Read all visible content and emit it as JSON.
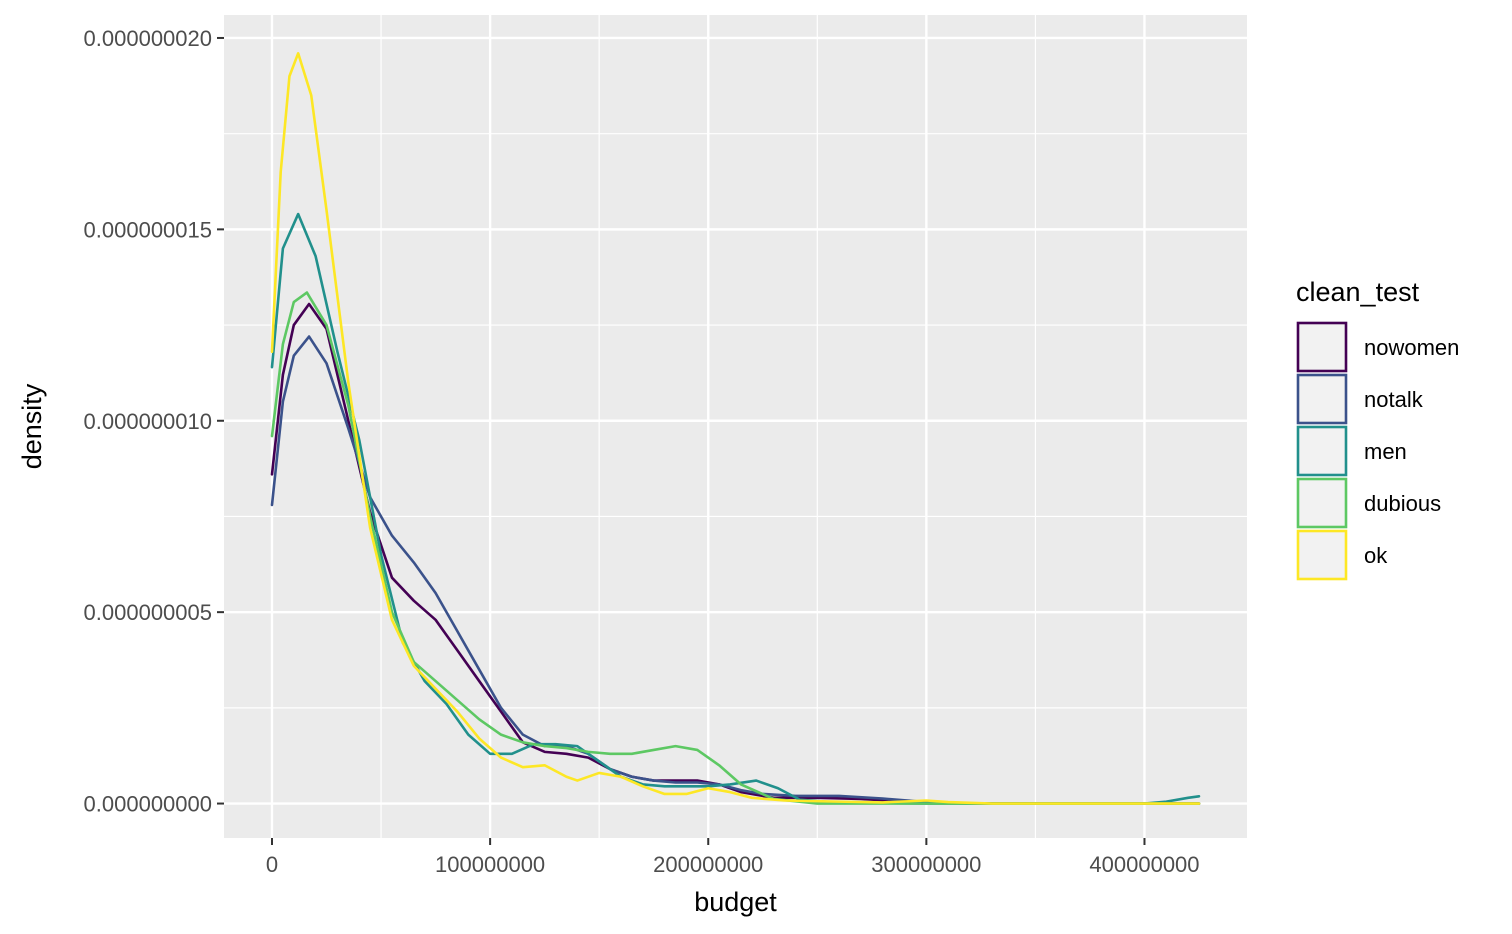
{
  "chart_data": {
    "type": "line",
    "subtype": "density",
    "title": "",
    "xlabel": "budget",
    "ylabel": "density",
    "xlim": [
      -22000000,
      447000000
    ],
    "ylim": [
      -9e-10,
      2.06e-08
    ],
    "x_ticks": [
      0,
      100000000,
      200000000,
      300000000,
      400000000
    ],
    "x_tick_labels": [
      "0",
      "100000000",
      "200000000",
      "300000000",
      "400000000"
    ],
    "y_ticks": [
      0,
      5e-09,
      1e-08,
      1.5e-08,
      2e-08
    ],
    "y_tick_labels": [
      "0.000000000",
      "0.000000005",
      "0.000000010",
      "0.000000015",
      "0.000000020"
    ],
    "grid": true,
    "legend": {
      "title": "clean_test",
      "position": "right"
    },
    "colors": {
      "panel": "#ebebeb",
      "grid": "#ffffff",
      "legend_key": "#f2f2f2",
      "tick": "#333333"
    },
    "series": [
      {
        "name": "nowomen",
        "color": "#440154",
        "points": [
          [
            0,
            8.6e-09
          ],
          [
            5000000.0,
            1.12e-08
          ],
          [
            10000000.0,
            1.25e-08
          ],
          [
            17000000.0,
            1.305e-08
          ],
          [
            25000000.0,
            1.24e-08
          ],
          [
            35000000.0,
            1e-08
          ],
          [
            45000000.0,
            7.6e-09
          ],
          [
            55000000.0,
            5.9e-09
          ],
          [
            65000000.0,
            5.3e-09
          ],
          [
            75000000.0,
            4.8e-09
          ],
          [
            85000000.0,
            4e-09
          ],
          [
            95000000.0,
            3.2e-09
          ],
          [
            105000000.0,
            2.4e-09
          ],
          [
            115000000.0,
            1.6e-09
          ],
          [
            125000000.0,
            1.35e-09
          ],
          [
            135000000.0,
            1.3e-09
          ],
          [
            145000000.0,
            1.2e-09
          ],
          [
            155000000.0,
            9e-10
          ],
          [
            165000000.0,
            7e-10
          ],
          [
            175000000.0,
            6e-10
          ],
          [
            185000000.0,
            6e-10
          ],
          [
            195000000.0,
            6e-10
          ],
          [
            205000000.0,
            5e-10
          ],
          [
            215000000.0,
            3e-10
          ],
          [
            230000000.0,
            1.5e-10
          ],
          [
            250000000.0,
            1.5e-10
          ],
          [
            270000000.0,
            1.2e-10
          ],
          [
            290000000.0,
            5e-11
          ],
          [
            310000000.0,
            1e-11
          ],
          [
            350000000.0,
            0
          ],
          [
            425000000.0,
            0
          ]
        ]
      },
      {
        "name": "notalk",
        "color": "#3b528b",
        "points": [
          [
            0,
            7.8e-09
          ],
          [
            5000000.0,
            1.05e-08
          ],
          [
            10000000.0,
            1.17e-08
          ],
          [
            17000000.0,
            1.22e-08
          ],
          [
            25000000.0,
            1.15e-08
          ],
          [
            35000000.0,
            9.8e-09
          ],
          [
            45000000.0,
            8e-09
          ],
          [
            55000000.0,
            7e-09
          ],
          [
            65000000.0,
            6.3e-09
          ],
          [
            75000000.0,
            5.5e-09
          ],
          [
            85000000.0,
            4.5e-09
          ],
          [
            95000000.0,
            3.5e-09
          ],
          [
            105000000.0,
            2.5e-09
          ],
          [
            115000000.0,
            1.8e-09
          ],
          [
            125000000.0,
            1.5e-09
          ],
          [
            135000000.0,
            1.5e-09
          ],
          [
            145000000.0,
            1.3e-09
          ],
          [
            155000000.0,
            9e-10
          ],
          [
            165000000.0,
            7e-10
          ],
          [
            175000000.0,
            6e-10
          ],
          [
            185000000.0,
            5.5e-10
          ],
          [
            195000000.0,
            5.5e-10
          ],
          [
            205000000.0,
            5e-10
          ],
          [
            215000000.0,
            3.5e-10
          ],
          [
            225000000.0,
            2.5e-10
          ],
          [
            240000000.0,
            2e-10
          ],
          [
            260000000.0,
            2e-10
          ],
          [
            280000000.0,
            1.3e-10
          ],
          [
            300000000.0,
            4e-11
          ],
          [
            320000000.0,
            0
          ],
          [
            425000000.0,
            0
          ]
        ]
      },
      {
        "name": "men",
        "color": "#21908c",
        "points": [
          [
            0,
            1.14e-08
          ],
          [
            5000000.0,
            1.45e-08
          ],
          [
            12000000.0,
            1.54e-08
          ],
          [
            20000000.0,
            1.43e-08
          ],
          [
            30000000.0,
            1.18e-08
          ],
          [
            40000000.0,
            9.5e-09
          ],
          [
            50000000.0,
            6.5e-09
          ],
          [
            60000000.0,
            4.2e-09
          ],
          [
            70000000.0,
            3.2e-09
          ],
          [
            80000000.0,
            2.6e-09
          ],
          [
            90000000.0,
            1.8e-09
          ],
          [
            100000000.0,
            1.3e-09
          ],
          [
            110000000.0,
            1.3e-09
          ],
          [
            120000000.0,
            1.55e-09
          ],
          [
            130000000.0,
            1.55e-09
          ],
          [
            140000000.0,
            1.5e-09
          ],
          [
            150000000.0,
            1.1e-09
          ],
          [
            160000000.0,
            7e-10
          ],
          [
            170000000.0,
            5e-10
          ],
          [
            180000000.0,
            4.5e-10
          ],
          [
            190000000.0,
            4.5e-10
          ],
          [
            200000000.0,
            4.5e-10
          ],
          [
            210000000.0,
            5e-10
          ],
          [
            222000000.0,
            6e-10
          ],
          [
            232000000.0,
            4e-10
          ],
          [
            242000000.0,
            1e-10
          ],
          [
            260000000.0,
            2e-11
          ],
          [
            300000000.0,
            0
          ],
          [
            400000000.0,
            0
          ],
          [
            410000000.0,
            5e-11
          ],
          [
            420000000.0,
            1.5e-10
          ],
          [
            425000000.0,
            1.9e-10
          ]
        ]
      },
      {
        "name": "dubious",
        "color": "#5dc863",
        "points": [
          [
            0,
            9.6e-09
          ],
          [
            5000000.0,
            1.2e-08
          ],
          [
            10000000.0,
            1.31e-08
          ],
          [
            16000000.0,
            1.335e-08
          ],
          [
            25000000.0,
            1.25e-08
          ],
          [
            35000000.0,
            1.04e-08
          ],
          [
            45000000.0,
            7.5e-09
          ],
          [
            55000000.0,
            5e-09
          ],
          [
            65000000.0,
            3.7e-09
          ],
          [
            75000000.0,
            3.2e-09
          ],
          [
            85000000.0,
            2.7e-09
          ],
          [
            95000000.0,
            2.2e-09
          ],
          [
            105000000.0,
            1.8e-09
          ],
          [
            115000000.0,
            1.6e-09
          ],
          [
            125000000.0,
            1.5e-09
          ],
          [
            135000000.0,
            1.45e-09
          ],
          [
            145000000.0,
            1.35e-09
          ],
          [
            155000000.0,
            1.3e-09
          ],
          [
            165000000.0,
            1.3e-09
          ],
          [
            175000000.0,
            1.4e-09
          ],
          [
            185000000.0,
            1.5e-09
          ],
          [
            195000000.0,
            1.4e-09
          ],
          [
            205000000.0,
            1e-09
          ],
          [
            215000000.0,
            5e-10
          ],
          [
            230000000.0,
            1.2e-10
          ],
          [
            250000000.0,
            0
          ],
          [
            425000000.0,
            0
          ]
        ]
      },
      {
        "name": "ok",
        "color": "#fde725",
        "points": [
          [
            0,
            1.18e-08
          ],
          [
            4000000.0,
            1.65e-08
          ],
          [
            8000000.0,
            1.9e-08
          ],
          [
            12000000.0,
            1.96e-08
          ],
          [
            18000000.0,
            1.85e-08
          ],
          [
            25000000.0,
            1.55e-08
          ],
          [
            35000000.0,
            1.1e-08
          ],
          [
            45000000.0,
            7.2e-09
          ],
          [
            55000000.0,
            4.8e-09
          ],
          [
            65000000.0,
            3.6e-09
          ],
          [
            75000000.0,
            3e-09
          ],
          [
            85000000.0,
            2.4e-09
          ],
          [
            95000000.0,
            1.7e-09
          ],
          [
            105000000.0,
            1.2e-09
          ],
          [
            115000000.0,
            9.5e-10
          ],
          [
            125000000.0,
            1e-09
          ],
          [
            135000000.0,
            7e-10
          ],
          [
            140000000.0,
            6e-10
          ],
          [
            150000000.0,
            8e-10
          ],
          [
            160000000.0,
            7e-10
          ],
          [
            170000000.0,
            4.5e-10
          ],
          [
            180000000.0,
            2.5e-10
          ],
          [
            190000000.0,
            2.5e-10
          ],
          [
            200000000.0,
            4e-10
          ],
          [
            210000000.0,
            3e-10
          ],
          [
            220000000.0,
            1.5e-10
          ],
          [
            235000000.0,
            8e-11
          ],
          [
            260000000.0,
            5e-11
          ],
          [
            280000000.0,
            3e-11
          ],
          [
            300000000.0,
            8e-11
          ],
          [
            310000000.0,
            4e-11
          ],
          [
            330000000.0,
            0
          ],
          [
            425000000.0,
            0
          ]
        ]
      }
    ]
  }
}
